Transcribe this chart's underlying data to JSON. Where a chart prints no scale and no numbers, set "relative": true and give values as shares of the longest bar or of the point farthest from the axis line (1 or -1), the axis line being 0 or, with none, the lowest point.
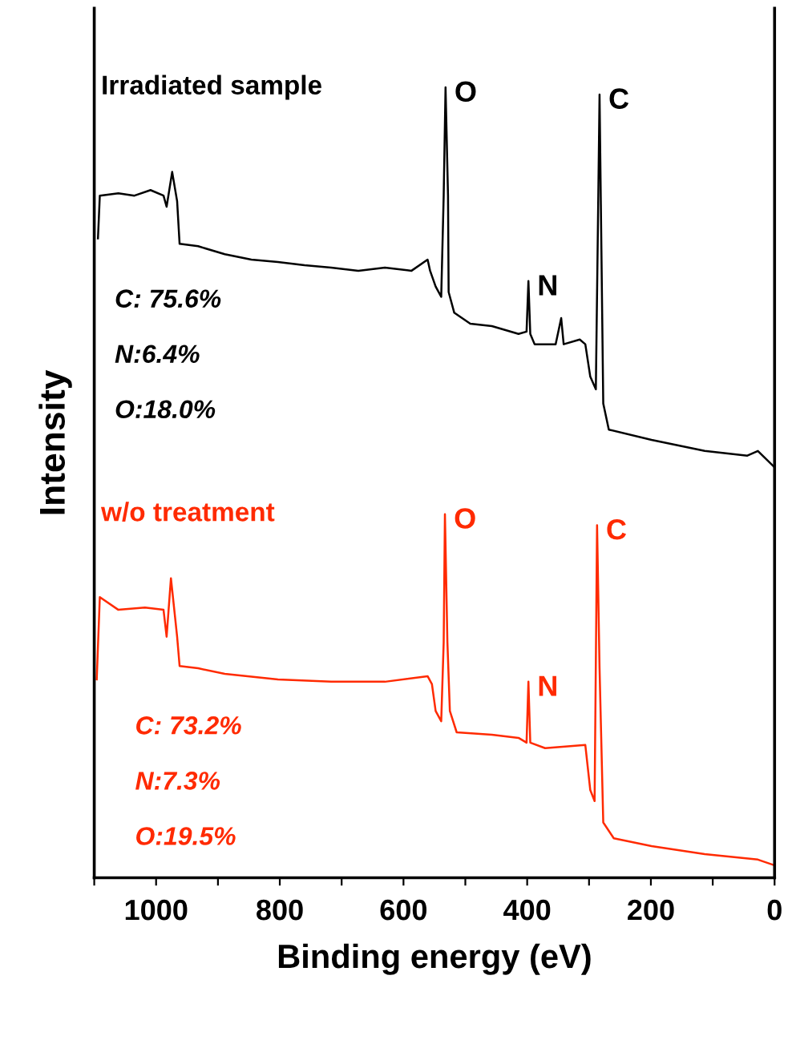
{
  "chart_data": {
    "type": "line",
    "xlabel": "Binding energy (eV)",
    "ylabel": "Intensity",
    "relative": true,
    "xlim": [
      1100,
      0
    ],
    "xticks": [
      {
        "value": 1100,
        "label": null
      },
      1000,
      {
        "value": 900,
        "label": null
      },
      800,
      {
        "value": 700,
        "label": null
      },
      600,
      {
        "value": 500,
        "label": null
      },
      400,
      {
        "value": 300,
        "label": null
      },
      200,
      {
        "value": 100,
        "label": null
      },
      0
    ],
    "tick_labels": "x",
    "grid": false,
    "marker": "none",
    "line_style": "solid",
    "series": [
      {
        "name": "Irradiated sample",
        "color": "#000000",
        "x": [
          1094,
          1091,
          1061,
          1035,
          1009,
          988,
          983,
          974,
          966,
          962,
          932,
          889,
          846,
          803,
          760,
          717,
          673,
          630,
          587,
          561,
          557,
          548,
          539,
          535,
          532,
          528,
          527,
          518,
          492,
          457,
          414,
          401,
          398,
          395,
          388,
          354,
          345,
          341,
          315,
          306,
          298,
          289,
          285,
          283,
          280,
          277,
          268,
          199,
          113,
          44,
          27,
          1
        ],
        "values": [
          0.809,
          0.863,
          0.866,
          0.863,
          0.87,
          0.863,
          0.849,
          0.893,
          0.856,
          0.802,
          0.799,
          0.789,
          0.782,
          0.779,
          0.775,
          0.772,
          0.768,
          0.772,
          0.768,
          0.782,
          0.768,
          0.748,
          0.735,
          0.863,
          1.0,
          0.863,
          0.741,
          0.715,
          0.701,
          0.698,
          0.688,
          0.691,
          0.755,
          0.688,
          0.675,
          0.675,
          0.708,
          0.675,
          0.681,
          0.675,
          0.634,
          0.618,
          0.863,
          0.991,
          0.795,
          0.6,
          0.567,
          0.554,
          0.54,
          0.534,
          0.54,
          0.52
        ]
      },
      {
        "name": "w/o treatment",
        "color": "#ff2a00",
        "x": [
          1096,
          1091,
          1061,
          1018,
          988,
          983,
          976,
          966,
          962,
          932,
          889,
          803,
          717,
          630,
          561,
          554,
          548,
          539,
          535,
          533,
          529,
          525,
          514,
          457,
          414,
          401,
          398,
          395,
          371,
          306,
          298,
          291,
          287,
          283,
          277,
          260,
          199,
          113,
          27,
          1
        ],
        "values": [
          0.251,
          0.355,
          0.339,
          0.342,
          0.339,
          0.305,
          0.379,
          0.305,
          0.268,
          0.265,
          0.258,
          0.251,
          0.248,
          0.248,
          0.255,
          0.245,
          0.211,
          0.198,
          0.298,
          0.46,
          0.298,
          0.211,
          0.184,
          0.181,
          0.177,
          0.171,
          0.248,
          0.171,
          0.164,
          0.168,
          0.111,
          0.097,
          0.446,
          0.265,
          0.07,
          0.05,
          0.04,
          0.03,
          0.023,
          0.016
        ]
      }
    ],
    "annotations": [
      {
        "text": "O",
        "x": 532,
        "y": 1.0
      },
      {
        "text": "N",
        "x": 398,
        "y": 0.755
      },
      {
        "text": "C",
        "x": 283,
        "y": 0.991
      },
      "C: 75.6%",
      "N:6.4%",
      "O:18.0%",
      {
        "text": "O",
        "x": 533,
        "y": 0.46
      },
      {
        "text": "N",
        "x": 398,
        "y": 0.248
      },
      {
        "text": "C",
        "x": 287,
        "y": 0.446
      },
      "C: 73.2%",
      "N:7.3%",
      "O:19.5%"
    ]
  }
}
